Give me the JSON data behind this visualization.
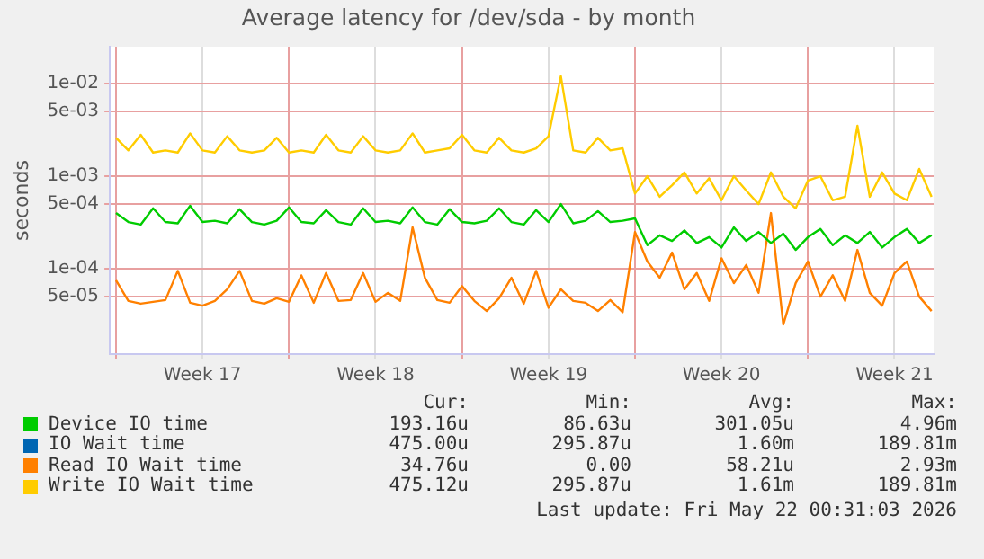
{
  "chart_data": {
    "type": "line",
    "title": "Average latency for /dev/sda - by month",
    "ylabel": "seconds",
    "log": "y",
    "grid": true,
    "legend": "bottom",
    "marker": "none",
    "line_style": "solid",
    "ylim": [
      1.2e-05,
      0.025
    ],
    "yticks": [
      {
        "value": 5e-05,
        "label": "5e-05"
      },
      {
        "value": 0.0001,
        "label": "1e-04"
      },
      {
        "value": 0.0005,
        "label": "5e-04"
      },
      {
        "value": 0.001,
        "label": "1e-03"
      },
      {
        "value": 0.005,
        "label": "5e-03"
      },
      {
        "value": 0.01,
        "label": "1e-02"
      }
    ],
    "xlim": [
      "2026-04-18T18:00",
      "2026-05-22T02:00"
    ],
    "xticks": [
      {
        "value": "2026-04-19",
        "label": null
      },
      {
        "value": "2026-04-22T12:00",
        "label": "Week 17"
      },
      {
        "value": "2026-04-26",
        "label": null
      },
      {
        "value": "2026-04-29T12:00",
        "label": "Week 18"
      },
      {
        "value": "2026-05-03",
        "label": null
      },
      {
        "value": "2026-05-06T12:00",
        "label": "Week 19"
      },
      {
        "value": "2026-05-10",
        "label": null
      },
      {
        "value": "2026-05-13T12:00",
        "label": "Week 20"
      },
      {
        "value": "2026-05-17",
        "label": null
      },
      {
        "value": "2026-05-20T12:00",
        "label": "Week 21"
      }
    ],
    "x": [
      "2026-04-19T00:00",
      "2026-04-19T12:00",
      "2026-04-20T00:00",
      "2026-04-20T12:00",
      "2026-04-21T00:00",
      "2026-04-21T12:00",
      "2026-04-22T00:00",
      "2026-04-22T12:00",
      "2026-04-23T00:00",
      "2026-04-23T12:00",
      "2026-04-24T00:00",
      "2026-04-24T12:00",
      "2026-04-25T00:00",
      "2026-04-25T12:00",
      "2026-04-26T00:00",
      "2026-04-26T12:00",
      "2026-04-27T00:00",
      "2026-04-27T12:00",
      "2026-04-28T00:00",
      "2026-04-28T12:00",
      "2026-04-29T00:00",
      "2026-04-29T12:00",
      "2026-04-30T00:00",
      "2026-04-30T12:00",
      "2026-05-01T00:00",
      "2026-05-01T12:00",
      "2026-05-02T00:00",
      "2026-05-02T12:00",
      "2026-05-03T00:00",
      "2026-05-03T12:00",
      "2026-05-04T00:00",
      "2026-05-04T12:00",
      "2026-05-05T00:00",
      "2026-05-05T12:00",
      "2026-05-06T00:00",
      "2026-05-06T12:00",
      "2026-05-07T00:00",
      "2026-05-07T12:00",
      "2026-05-08T00:00",
      "2026-05-08T12:00",
      "2026-05-09T00:00",
      "2026-05-09T12:00",
      "2026-05-10T00:00",
      "2026-05-10T12:00",
      "2026-05-11T00:00",
      "2026-05-11T12:00",
      "2026-05-12T00:00",
      "2026-05-12T12:00",
      "2026-05-13T00:00",
      "2026-05-13T12:00",
      "2026-05-14T00:00",
      "2026-05-14T12:00",
      "2026-05-15T00:00",
      "2026-05-15T12:00",
      "2026-05-16T00:00",
      "2026-05-16T12:00",
      "2026-05-17T00:00",
      "2026-05-17T12:00",
      "2026-05-18T00:00",
      "2026-05-18T12:00",
      "2026-05-19T00:00",
      "2026-05-19T12:00",
      "2026-05-20T00:00",
      "2026-05-20T12:00",
      "2026-05-21T00:00",
      "2026-05-21T12:00",
      "2026-05-22T00:00"
    ],
    "series": [
      {
        "name": "Device IO time",
        "color": "#00cc00",
        "values": [
          0.0004,
          0.00032,
          0.0003,
          0.00045,
          0.00032,
          0.00031,
          0.00048,
          0.00032,
          0.00033,
          0.00031,
          0.00044,
          0.00032,
          0.0003,
          0.00033,
          0.00046,
          0.00032,
          0.00031,
          0.00043,
          0.00032,
          0.0003,
          0.00045,
          0.00032,
          0.00033,
          0.00031,
          0.00046,
          0.00032,
          0.0003,
          0.00044,
          0.00032,
          0.00031,
          0.00033,
          0.00045,
          0.00032,
          0.0003,
          0.00043,
          0.00032,
          0.0005,
          0.00031,
          0.00033,
          0.00042,
          0.00032,
          0.00033,
          0.00035,
          0.00018,
          0.00023,
          0.0002,
          0.00026,
          0.00019,
          0.00022,
          0.00017,
          0.00028,
          0.0002,
          0.00025,
          0.00019,
          0.00024,
          0.00016,
          0.00022,
          0.00027,
          0.00018,
          0.00023,
          0.00019,
          0.00025,
          0.00017,
          0.00022,
          0.00027,
          0.00019,
          0.00023
        ]
      },
      {
        "name": "IO Wait time",
        "color": "#0066b3",
        "values": [
          null,
          null,
          null,
          null,
          null,
          null,
          null,
          null,
          null,
          null,
          null,
          null,
          null,
          null,
          null,
          null,
          null,
          null,
          null,
          null,
          null,
          null,
          null,
          null,
          null,
          null,
          null,
          null,
          null,
          null,
          null,
          null,
          null,
          null,
          null,
          null,
          null,
          null,
          null,
          null,
          null,
          null,
          null,
          null,
          null,
          null,
          null,
          null,
          null,
          null,
          null,
          null,
          null,
          null,
          null,
          null,
          null,
          null,
          null,
          null,
          null,
          null,
          null,
          null,
          null,
          null,
          null
        ]
      },
      {
        "name": "Read IO Wait time",
        "color": "#ff8000",
        "values": [
          7.5e-05,
          4.5e-05,
          4.2e-05,
          4.4e-05,
          4.6e-05,
          9.5e-05,
          4.3e-05,
          4e-05,
          4.5e-05,
          6e-05,
          9.5e-05,
          4.5e-05,
          4.2e-05,
          4.8e-05,
          4.4e-05,
          8.5e-05,
          4.3e-05,
          9e-05,
          4.5e-05,
          4.6e-05,
          9e-05,
          4.4e-05,
          5.5e-05,
          4.5e-05,
          0.00028,
          8e-05,
          4.6e-05,
          4.3e-05,
          6.5e-05,
          4.5e-05,
          3.5e-05,
          4.8e-05,
          8e-05,
          4.2e-05,
          9.5e-05,
          3.8e-05,
          6e-05,
          4.5e-05,
          4.3e-05,
          3.5e-05,
          4.6e-05,
          3.4e-05,
          0.00025,
          0.00012,
          8e-05,
          0.00015,
          6e-05,
          9e-05,
          4.5e-05,
          0.00013,
          7e-05,
          0.00011,
          5.5e-05,
          0.0004,
          2.5e-05,
          7e-05,
          0.00012,
          5e-05,
          8.5e-05,
          4.5e-05,
          0.00016,
          5.5e-05,
          4e-05,
          9e-05,
          0.00012,
          5e-05,
          3.5e-05
        ]
      },
      {
        "name": "Write IO Wait time",
        "color": "#ffcc00",
        "values": [
          0.0026,
          0.0019,
          0.0028,
          0.0018,
          0.0019,
          0.0018,
          0.0029,
          0.0019,
          0.0018,
          0.0027,
          0.0019,
          0.0018,
          0.0019,
          0.0026,
          0.0018,
          0.0019,
          0.0018,
          0.0028,
          0.0019,
          0.0018,
          0.0027,
          0.0019,
          0.0018,
          0.0019,
          0.0029,
          0.0018,
          0.0019,
          0.002,
          0.0028,
          0.0019,
          0.0018,
          0.0026,
          0.0019,
          0.0018,
          0.002,
          0.0027,
          0.012,
          0.0019,
          0.0018,
          0.0026,
          0.0019,
          0.002,
          0.00065,
          0.001,
          0.0006,
          0.0008,
          0.0011,
          0.00065,
          0.00095,
          0.00055,
          0.001,
          0.0007,
          0.0005,
          0.0011,
          0.0006,
          0.00045,
          0.0009,
          0.001,
          0.00055,
          0.0006,
          0.0035,
          0.0006,
          0.0011,
          0.00065,
          0.00055,
          0.0012,
          0.0006
        ]
      }
    ],
    "annotations": [
      "Cur:",
      "Min:",
      "Avg:",
      "Max:",
      "193.16u",
      "86.63u",
      "301.05u",
      "4.96m",
      "475.00u",
      "295.87u",
      "1.60m",
      "189.81m",
      "34.76u",
      "0.00",
      "58.21u",
      "2.93m",
      "475.12u",
      "295.87u",
      "1.61m",
      "189.81m",
      "Last update: Fri May 22 00:31:03 2026"
    ]
  }
}
